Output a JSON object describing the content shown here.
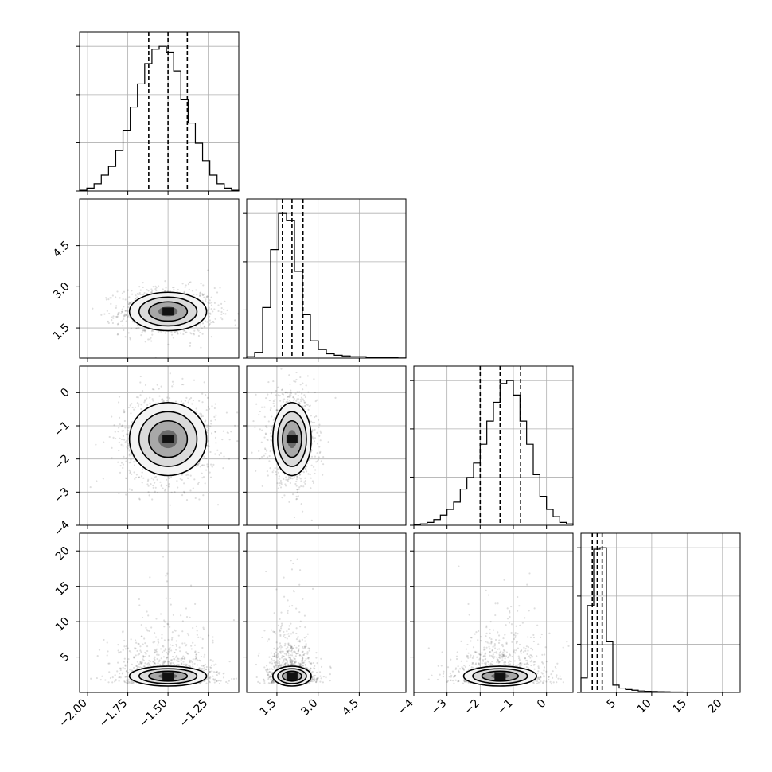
{
  "chart_data": {
    "type": "corner",
    "parameters": [
      {
        "range": [
          -2.05,
          -1.06
        ],
        "ticks": [
          -2.0,
          -1.75,
          -1.5,
          -1.25
        ],
        "tick_labels": [
          "−2.00",
          "−1.75",
          "−1.50",
          "−1.25"
        ],
        "quantiles": [
          -1.62,
          -1.5,
          -1.38
        ],
        "hist": [
          0.005,
          0.02,
          0.05,
          0.11,
          0.17,
          0.28,
          0.42,
          0.58,
          0.74,
          0.88,
          0.98,
          1.0,
          0.96,
          0.83,
          0.63,
          0.47,
          0.33,
          0.21,
          0.11,
          0.05,
          0.02,
          0.005
        ]
      },
      {
        "range": [
          0.4,
          6.2
        ],
        "ticks": [
          1.5,
          3.0,
          4.5
        ],
        "tick_labels": [
          "1.5",
          "3.0",
          "4.5"
        ],
        "quantiles": [
          1.7,
          2.05,
          2.45
        ],
        "hist": [
          0.01,
          0.04,
          0.35,
          0.75,
          1.0,
          0.95,
          0.6,
          0.3,
          0.12,
          0.06,
          0.03,
          0.02,
          0.015,
          0.01,
          0.01,
          0.005,
          0.005,
          0.003,
          0.002,
          0.001
        ]
      },
      {
        "range": [
          -4.0,
          0.8
        ],
        "ticks": [
          -4,
          -3,
          -2,
          -1,
          0
        ],
        "tick_labels": [
          "−4",
          "−3",
          "−2",
          "−1",
          "0"
        ],
        "quantiles": [
          -2.0,
          -1.4,
          -0.78
        ],
        "hist": [
          0.005,
          0.01,
          0.02,
          0.04,
          0.07,
          0.11,
          0.16,
          0.25,
          0.33,
          0.43,
          0.56,
          0.72,
          0.85,
          0.98,
          1.0,
          0.9,
          0.72,
          0.56,
          0.35,
          0.2,
          0.11,
          0.06,
          0.02,
          0.01
        ]
      },
      {
        "range": [
          0.0,
          22.5
        ],
        "ticks": [
          5,
          10,
          15,
          20
        ],
        "tick_labels": [
          "5",
          "10",
          "15",
          "20"
        ],
        "quantiles": [
          1.6,
          2.3,
          3.0
        ],
        "hist": [
          0.1,
          0.6,
          0.99,
          1.0,
          0.35,
          0.05,
          0.03,
          0.02,
          0.015,
          0.01,
          0.008,
          0.006,
          0.005,
          0.004,
          0.003,
          0.003,
          0.002,
          0.002,
          0.002,
          0.001,
          0.001,
          0.001,
          0.001,
          0.001,
          0.001
        ]
      }
    ],
    "pairs": [
      {
        "row": 1,
        "col": 0,
        "center": [
          -1.5,
          2.1
        ],
        "sigma": [
          0.12,
          0.35
        ],
        "rho": 0.0,
        "contours": [
          0.5,
          1.0,
          1.5,
          2.0
        ]
      },
      {
        "row": 2,
        "col": 0,
        "center": [
          -1.5,
          -1.4
        ],
        "sigma": [
          0.12,
          0.55
        ],
        "rho": 0.0,
        "contours": [
          0.5,
          1.0,
          1.5,
          2.0
        ]
      },
      {
        "row": 2,
        "col": 1,
        "center": [
          2.05,
          -1.4
        ],
        "sigma": [
          0.35,
          0.55
        ],
        "rho": -0.1,
        "contours": [
          0.5,
          1.0,
          1.5,
          2.0
        ]
      },
      {
        "row": 3,
        "col": 0,
        "center": [
          -1.5,
          2.3
        ],
        "sigma": [
          0.12,
          0.7
        ],
        "rho": 0.0,
        "contours": [
          0.5,
          1.0,
          1.5,
          2.0
        ]
      },
      {
        "row": 3,
        "col": 1,
        "center": [
          2.05,
          2.3
        ],
        "sigma": [
          0.35,
          0.7
        ],
        "rho": 0.0,
        "contours": [
          0.5,
          1.0,
          1.5,
          2.0
        ]
      },
      {
        "row": 3,
        "col": 2,
        "center": [
          -1.4,
          2.3
        ],
        "sigma": [
          0.55,
          0.7
        ],
        "rho": 0.0,
        "contours": [
          0.5,
          1.0,
          1.5,
          2.0
        ]
      }
    ],
    "grid": true,
    "title": "",
    "xlabel": "",
    "ylabel": ""
  }
}
